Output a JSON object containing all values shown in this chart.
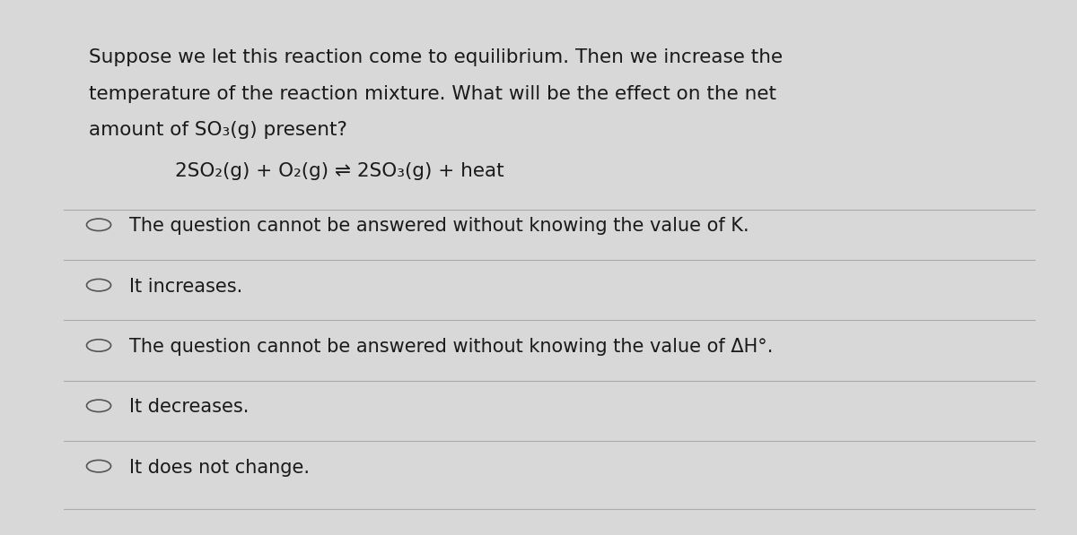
{
  "bg_color": "#d8d8d8",
  "card_color": "#e8e8e8",
  "text_color": "#1a1a1a",
  "question_text": [
    "Suppose we let this reaction come to equilibrium. Then we increase the",
    "temperature of the reaction mixture. What will be the effect on the net",
    "amount of SO₃(g) present?"
  ],
  "equation_plain": "2SO₂(g) + O₂(g)   2SO₃(g) + heat",
  "options": [
    "The question cannot be answered without knowing the value of K.",
    "It increases.",
    "The question cannot be answered without knowing the value of ΔH°.",
    "It decreases.",
    "It does not change."
  ],
  "font_size_question": 15.5,
  "font_size_equation": 15.5,
  "font_size_options": 15.0,
  "divider_color": "#aaaaaa"
}
